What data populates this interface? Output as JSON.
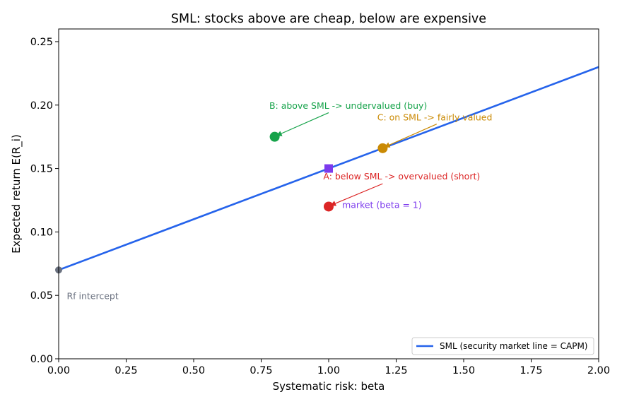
{
  "chart_data": {
    "type": "scatter",
    "title": "SML: stocks above are cheap, below are expensive",
    "xlabel": "Systematic risk: beta",
    "ylabel": "Expected return E(R_i)",
    "xlim": [
      0,
      2
    ],
    "ylim": [
      0,
      0.26
    ],
    "x_ticks": [
      {
        "value": 0,
        "label": "0.00"
      },
      {
        "value": 0.25,
        "label": "0.25"
      },
      {
        "value": 0.5,
        "label": "0.50"
      },
      {
        "value": 0.75,
        "label": "0.75"
      },
      {
        "value": 1.0,
        "label": "1.00"
      },
      {
        "value": 1.25,
        "label": "1.25"
      },
      {
        "value": 1.5,
        "label": "1.50"
      },
      {
        "value": 1.75,
        "label": "1.75"
      },
      {
        "value": 2.0,
        "label": "2.00"
      }
    ],
    "y_ticks": [
      {
        "value": 0,
        "label": "0.00"
      },
      {
        "value": 0.05,
        "label": "0.05"
      },
      {
        "value": 0.1,
        "label": "0.10"
      },
      {
        "value": 0.15,
        "label": "0.15"
      },
      {
        "value": 0.2,
        "label": "0.20"
      },
      {
        "value": 0.25,
        "label": "0.25"
      }
    ],
    "grid": false,
    "legend_position": "lower-right",
    "series": [
      {
        "name": "SML (security market line = CAPM)",
        "kind": "line",
        "color": "#2563eb",
        "x": [
          0,
          2
        ],
        "y": [
          0.07,
          0.23
        ]
      }
    ],
    "points": [
      {
        "id": "rf",
        "x": 0,
        "y": 0.07,
        "color": "#6b7280",
        "marker": "circle"
      },
      {
        "id": "market",
        "x": 1.0,
        "y": 0.15,
        "color": "#7c3aed",
        "marker": "square"
      },
      {
        "id": "a",
        "x": 1.0,
        "y": 0.12,
        "color": "#dc2626",
        "marker": "circle"
      },
      {
        "id": "b",
        "x": 0.8,
        "y": 0.175,
        "color": "#16a34a",
        "marker": "circle"
      },
      {
        "id": "c",
        "x": 1.2,
        "y": 0.166,
        "color": "#ca8a04",
        "marker": "circle"
      }
    ],
    "annotations": [
      {
        "id": "rf",
        "text": "Rf intercept",
        "color": "#6b7280",
        "tx": 0.03,
        "ty": 0.047,
        "anchor": "start"
      },
      {
        "id": "market",
        "text": "market (beta = 1)",
        "color": "#7c3aed",
        "tx": 1.05,
        "ty": 0.119,
        "anchor": "start"
      },
      {
        "id": "a",
        "text": "A: below SML -> overvalued (short)",
        "color": "#dc2626",
        "tx": 0.98,
        "ty": 0.1415,
        "anchor": "start",
        "arrow_from": [
          1.2,
          0.138
        ],
        "arrow_to": [
          1.008,
          0.121
        ]
      },
      {
        "id": "b",
        "text": "B: above SML -> undervalued (buy)",
        "color": "#16a34a",
        "tx": 0.78,
        "ty": 0.197,
        "anchor": "start",
        "arrow_from": [
          1.0,
          0.194
        ],
        "arrow_to": [
          0.808,
          0.176
        ]
      },
      {
        "id": "c",
        "text": "C: on SML -> fairly valued",
        "color": "#ca8a04",
        "tx": 1.18,
        "ty": 0.188,
        "anchor": "start",
        "arrow_from": [
          1.4,
          0.185
        ],
        "arrow_to": [
          1.208,
          0.167
        ]
      }
    ]
  }
}
